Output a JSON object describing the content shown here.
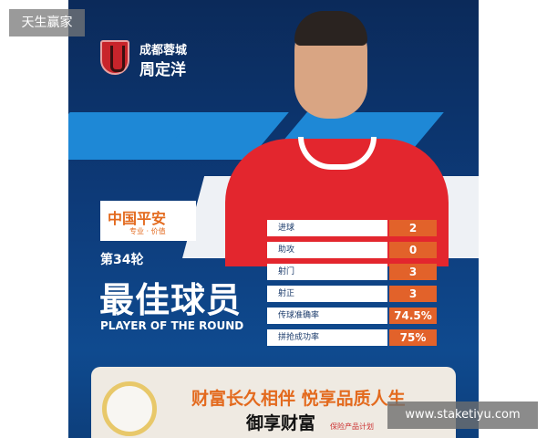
{
  "watermark": {
    "top_left": "天生赢家",
    "bottom_right": "www.staketiyu.com"
  },
  "header": {
    "club": "成都蓉城",
    "player": "周定洋"
  },
  "sponsor": {
    "name": "中国平安",
    "slogan": "专业 · 价值"
  },
  "award": {
    "round": "第34轮",
    "title": "最佳球员",
    "subtitle": "PLAYER OF THE ROUND"
  },
  "stats": [
    {
      "label": "进球",
      "value": "2"
    },
    {
      "label": "助攻",
      "value": "0"
    },
    {
      "label": "射门",
      "value": "3"
    },
    {
      "label": "射正",
      "value": "3"
    },
    {
      "label": "传球准确率",
      "value": "74.5%"
    },
    {
      "label": "拼抢成功率",
      "value": "75%"
    }
  ],
  "ad": {
    "headline": "财富长久相伴 悦享品质人生",
    "product": "御享财富",
    "tag": "保险产品计划"
  },
  "colors": {
    "navy": "#0b2a5a",
    "accent_orange": "#e2622a",
    "jersey_red": "#e3262e",
    "stripe_blue": "#1e88d6"
  }
}
